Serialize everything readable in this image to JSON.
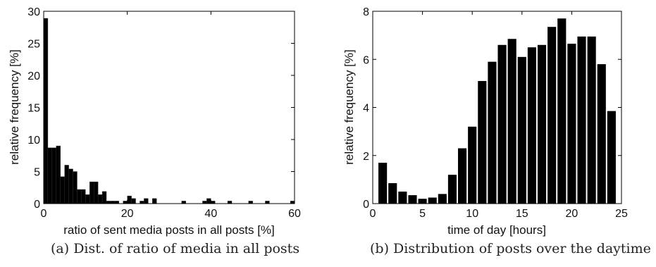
{
  "chart_data": [
    {
      "type": "bar",
      "xlabel": "ratio of sent media posts in all posts [%]",
      "ylabel": "relative frequency [%]",
      "xlim": [
        0,
        60
      ],
      "ylim": [
        0,
        30
      ],
      "xticks": [
        0,
        20,
        40,
        60
      ],
      "yticks": [
        0,
        5,
        10,
        15,
        20,
        25,
        30
      ],
      "bin_width": 1,
      "x": [
        0.5,
        1.5,
        2.5,
        3.5,
        4.5,
        5.5,
        6.5,
        7.5,
        8.5,
        9.5,
        10.5,
        11.5,
        12.5,
        13.5,
        14.5,
        15.5,
        16.5,
        17.5,
        18.5,
        19.5,
        20.5,
        21.5,
        22.5,
        23.5,
        24.5,
        25.5,
        26.5,
        27.5,
        28.5,
        29.5,
        30.5,
        31.5,
        32.5,
        33.5,
        34.5,
        35.5,
        36.5,
        37.5,
        38.5,
        39.5,
        40.5,
        41.5,
        42.5,
        43.5,
        44.5,
        45.5,
        46.5,
        47.5,
        48.5,
        49.5,
        50.5,
        51.5,
        52.5,
        53.5,
        54.5,
        55.5,
        56.5,
        57.5,
        58.5,
        59.5
      ],
      "values": [
        28.9,
        8.7,
        8.7,
        9.0,
        4.2,
        6.0,
        5.4,
        5.0,
        2.2,
        2.2,
        1.4,
        3.4,
        3.4,
        1.4,
        1.9,
        0.4,
        0.4,
        0.4,
        0,
        0.4,
        1.2,
        0.8,
        0,
        0.4,
        0.8,
        0,
        0.8,
        0,
        0,
        0,
        0,
        0,
        0,
        0.4,
        0,
        0,
        0,
        0,
        0.4,
        0.8,
        0.4,
        0,
        0,
        0,
        0.4,
        0,
        0,
        0,
        0,
        0.4,
        0,
        0,
        0,
        0.4,
        0,
        0,
        0,
        0,
        0,
        0.4
      ],
      "grid": false,
      "caption": "(a) Dist. of ratio of media in all posts"
    },
    {
      "type": "bar",
      "xlabel": "time of day [hours]",
      "ylabel": "relative frequency [%]",
      "xlim": [
        0,
        25
      ],
      "ylim": [
        0,
        8
      ],
      "xticks": [
        0,
        5,
        10,
        15,
        20,
        25
      ],
      "yticks": [
        0,
        2,
        4,
        6,
        8
      ],
      "bin_width": 1,
      "x": [
        1,
        2,
        3,
        4,
        5,
        6,
        7,
        8,
        9,
        10,
        11,
        12,
        13,
        14,
        15,
        16,
        17,
        18,
        19,
        20,
        21,
        22,
        23,
        24
      ],
      "values": [
        1.7,
        0.85,
        0.5,
        0.35,
        0.2,
        0.25,
        0.4,
        1.2,
        2.3,
        3.2,
        5.1,
        5.9,
        6.6,
        6.85,
        6.1,
        6.5,
        6.6,
        7.35,
        7.7,
        6.65,
        6.95,
        6.95,
        5.8,
        3.85
      ],
      "grid": false,
      "caption": "(b) Distribution of posts over the daytime"
    }
  ]
}
